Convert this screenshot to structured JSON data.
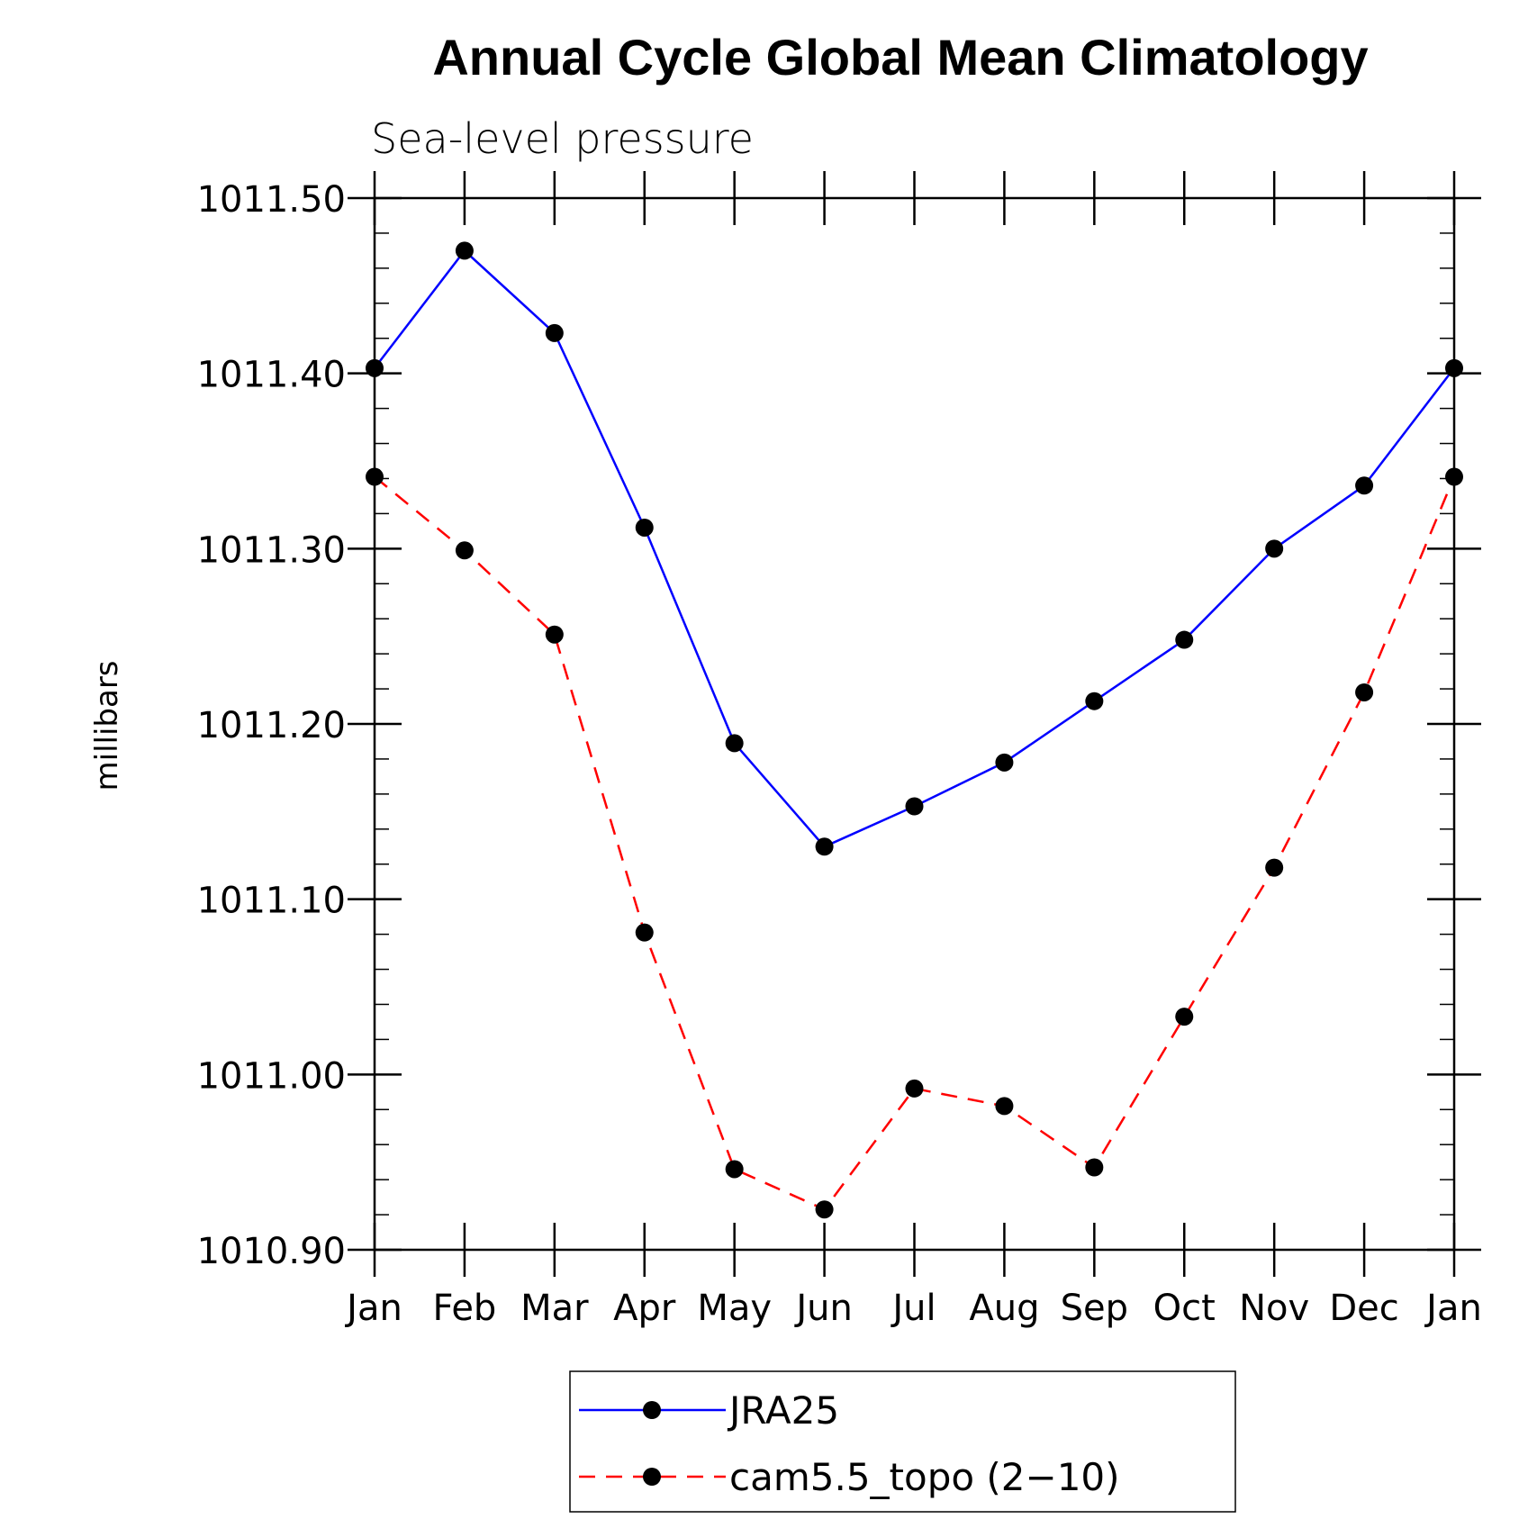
{
  "chart_data": {
    "type": "line",
    "title": "Annual Cycle Global Mean Climatology",
    "subtitle": "Sea-level pressure",
    "xlabel": "",
    "ylabel": "millibars",
    "ylim": [
      1010.9,
      1011.5
    ],
    "yticks": [
      "1011.50",
      "1011.40",
      "1011.30",
      "1011.20",
      "1011.10",
      "1011.00",
      "1010.90"
    ],
    "ytick_values": [
      1011.5,
      1011.4,
      1011.3,
      1011.2,
      1011.1,
      1011.0,
      1010.9
    ],
    "categories": [
      "Jan",
      "Feb",
      "Mar",
      "Apr",
      "May",
      "Jun",
      "Jul",
      "Aug",
      "Sep",
      "Oct",
      "Nov",
      "Dec",
      "Jan"
    ],
    "series": [
      {
        "name": "JRA25",
        "color": "#0000ff",
        "dash": "solid",
        "values": [
          1011.403,
          1011.47,
          1011.423,
          1011.312,
          1011.189,
          1011.13,
          1011.153,
          1011.178,
          1011.213,
          1011.248,
          1011.3,
          1011.336,
          1011.403
        ]
      },
      {
        "name": "cam5.5_topo (2-10)",
        "color": "#ff0000",
        "dash": "dashed",
        "values": [
          1011.341,
          1011.299,
          1011.251,
          1011.081,
          1010.946,
          1010.923,
          1010.992,
          1010.982,
          1010.947,
          1011.033,
          1011.118,
          1011.218,
          1011.341
        ]
      }
    ],
    "legend": {
      "position": "bottom-center",
      "entries": [
        "JRA25",
        "cam5.5_topo (2−10)"
      ]
    },
    "grid": false
  }
}
